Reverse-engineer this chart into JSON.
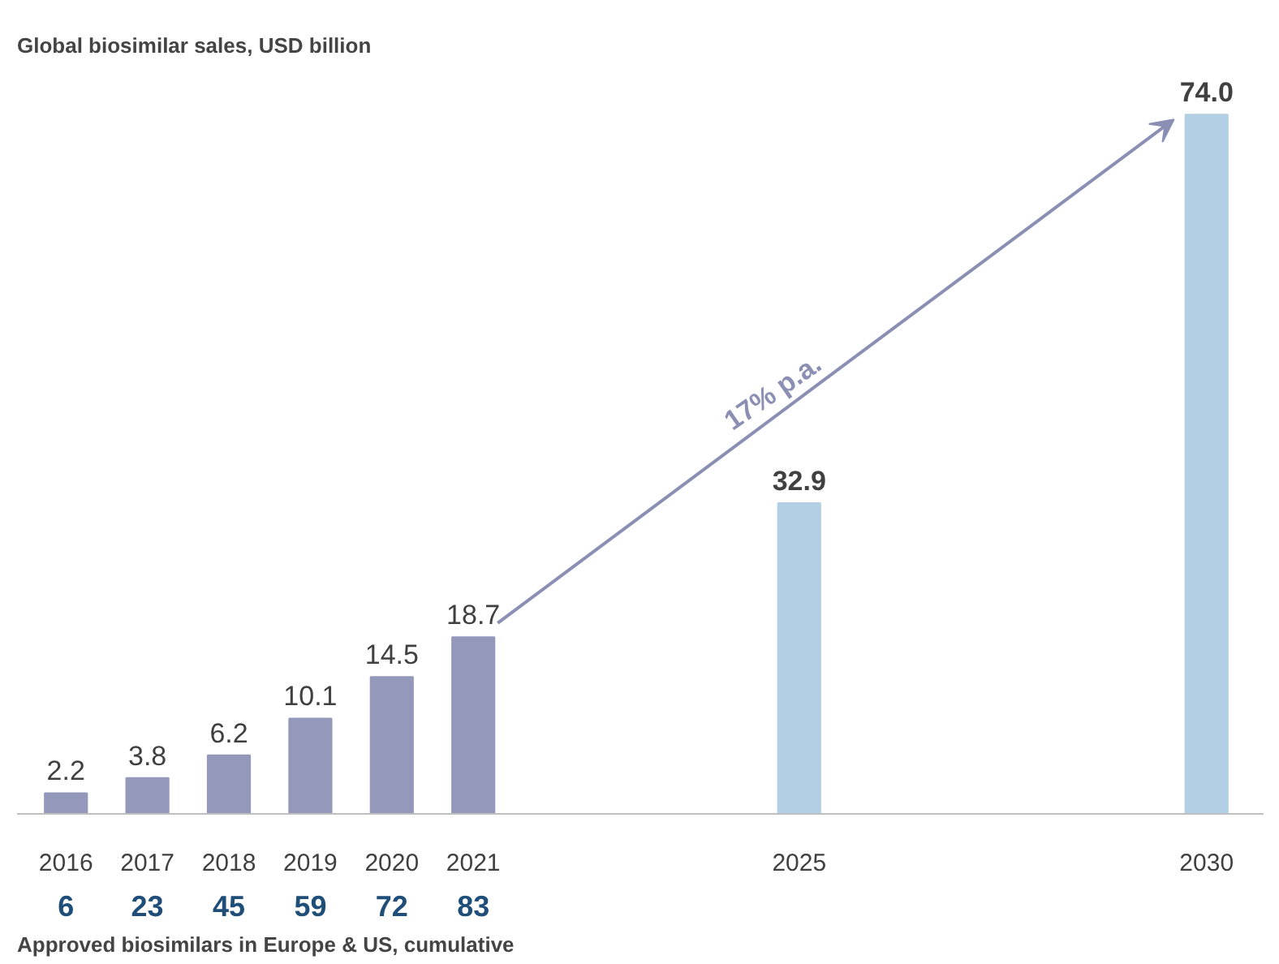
{
  "chart_data": {
    "type": "bar",
    "title": "Global biosimilar sales, USD billion",
    "x": [
      2016,
      2017,
      2018,
      2019,
      2020,
      2021,
      2025,
      2030
    ],
    "values": [
      2.2,
      3.8,
      6.2,
      10.1,
      14.5,
      18.7,
      32.9,
      74.0
    ],
    "value_labels": [
      "2.2",
      "3.8",
      "6.2",
      "10.1",
      "14.5",
      "18.7",
      "32.9",
      "74.0"
    ],
    "colors": [
      "#9499bb",
      "#9499bb",
      "#9499bb",
      "#9499bb",
      "#9499bb",
      "#9499bb",
      "#b3cfe3",
      "#b3cfe3"
    ],
    "xlim": [
      2015.4,
      2030.7
    ],
    "xticks": [
      2016,
      2017,
      2018,
      2019,
      2020,
      2021,
      2025,
      2030
    ],
    "annotations": [
      "17% p.a.",
      "6",
      "23",
      "45",
      "59",
      "72",
      "83",
      "Approved biosimilars in Europe & US, cumulative"
    ],
    "grid": false
  }
}
